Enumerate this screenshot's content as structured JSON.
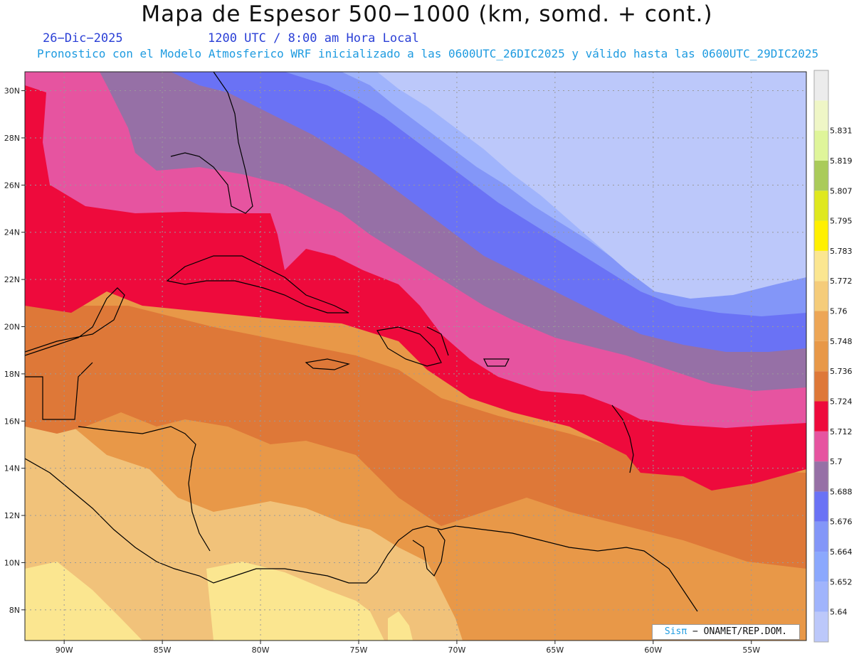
{
  "header": {
    "title": "Mapa de Espesor 500−1000 (km, somd. + cont.)",
    "date": "26−Dic−2025",
    "time": "1200 UTC / 8:00 am Hora Local",
    "subtitle": "Pronostico con el Modelo Atmosferico WRF inicializado a las 0600UTC_26DIC2025 y válido hasta las  0600UTC_29DIC2025"
  },
  "map": {
    "lon_range": [
      -92,
      -52.2
    ],
    "lat_range": [
      6.7,
      30.8
    ],
    "lat_ticks": [
      "30N",
      "28N",
      "26N",
      "24N",
      "22N",
      "20N",
      "18N",
      "16N",
      "14N",
      "12N",
      "10N",
      "8N"
    ],
    "lon_ticks": [
      "90W",
      "85W",
      "80W",
      "75W",
      "70W",
      "65W",
      "60W",
      "55W"
    ]
  },
  "colorbar": {
    "labels": [
      "5.64",
      "5.652",
      "5.664",
      "5.676",
      "5.688",
      "5.7",
      "5.712",
      "5.724",
      "5.736",
      "5.748",
      "5.76",
      "5.772",
      "5.783",
      "5.795",
      "5.807",
      "5.819",
      "5.831"
    ],
    "colors": [
      "#bcc8fa",
      "#a0b4fc",
      "#8ba8fd",
      "#8396f8",
      "#6a72f5",
      "#9670a6",
      "#e654a0",
      "#ee0a3c",
      "#de7838",
      "#e89848",
      "#eda656",
      "#f5cc7a",
      "#fbe690",
      "#fff000",
      "#dfe81e",
      "#aacb5a",
      "#dff59a",
      "#eff6c6",
      "#ececec"
    ]
  },
  "credit": {
    "brand": "Sisπ",
    "text": " − ONAMET/REP.DOM."
  }
}
